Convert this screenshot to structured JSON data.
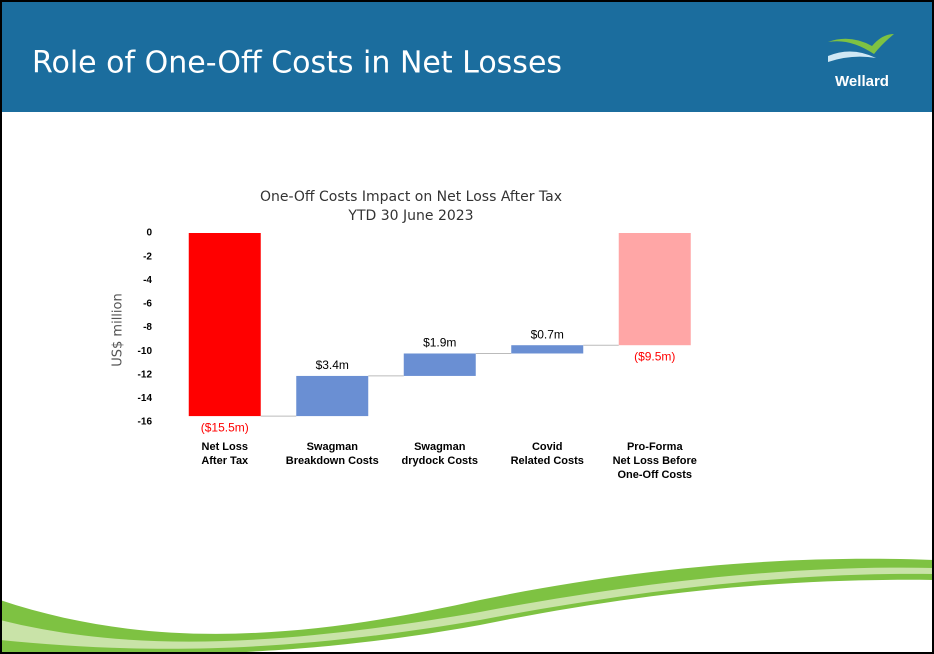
{
  "header": {
    "title": "Role of One-Off Costs in Net Losses",
    "logo": "Wellard"
  },
  "chart_data": {
    "type": "waterfall",
    "title": "One-Off Costs Impact on Net Loss After Tax",
    "subtitle": "YTD 30 June 2023",
    "y_label": "US$ million",
    "categories": [
      "Net Loss\nAfter Tax",
      "Swagman\nBreakdown Costs",
      "Swagman\ndrydock  Costs",
      "Covid\nRelated Costs",
      "Pro-Forma\nNet Loss Before\nOne-Off Costs"
    ],
    "values": [
      -15.5,
      3.4,
      1.9,
      0.7,
      -9.5
    ],
    "value_labels": [
      "($15.5m)",
      "$3.4m",
      "$1.9m",
      "$0.7m",
      "($9.5m)"
    ],
    "colors": [
      "#ff0000",
      "#6a8fd3",
      "#6a8fd3",
      "#6a8fd3",
      "#ffa6a6"
    ],
    "ylim": [
      -16,
      0
    ],
    "yticks": [
      0,
      -2,
      -4,
      -6,
      -8,
      -10,
      -12,
      -14,
      -16
    ],
    "grid": false
  }
}
